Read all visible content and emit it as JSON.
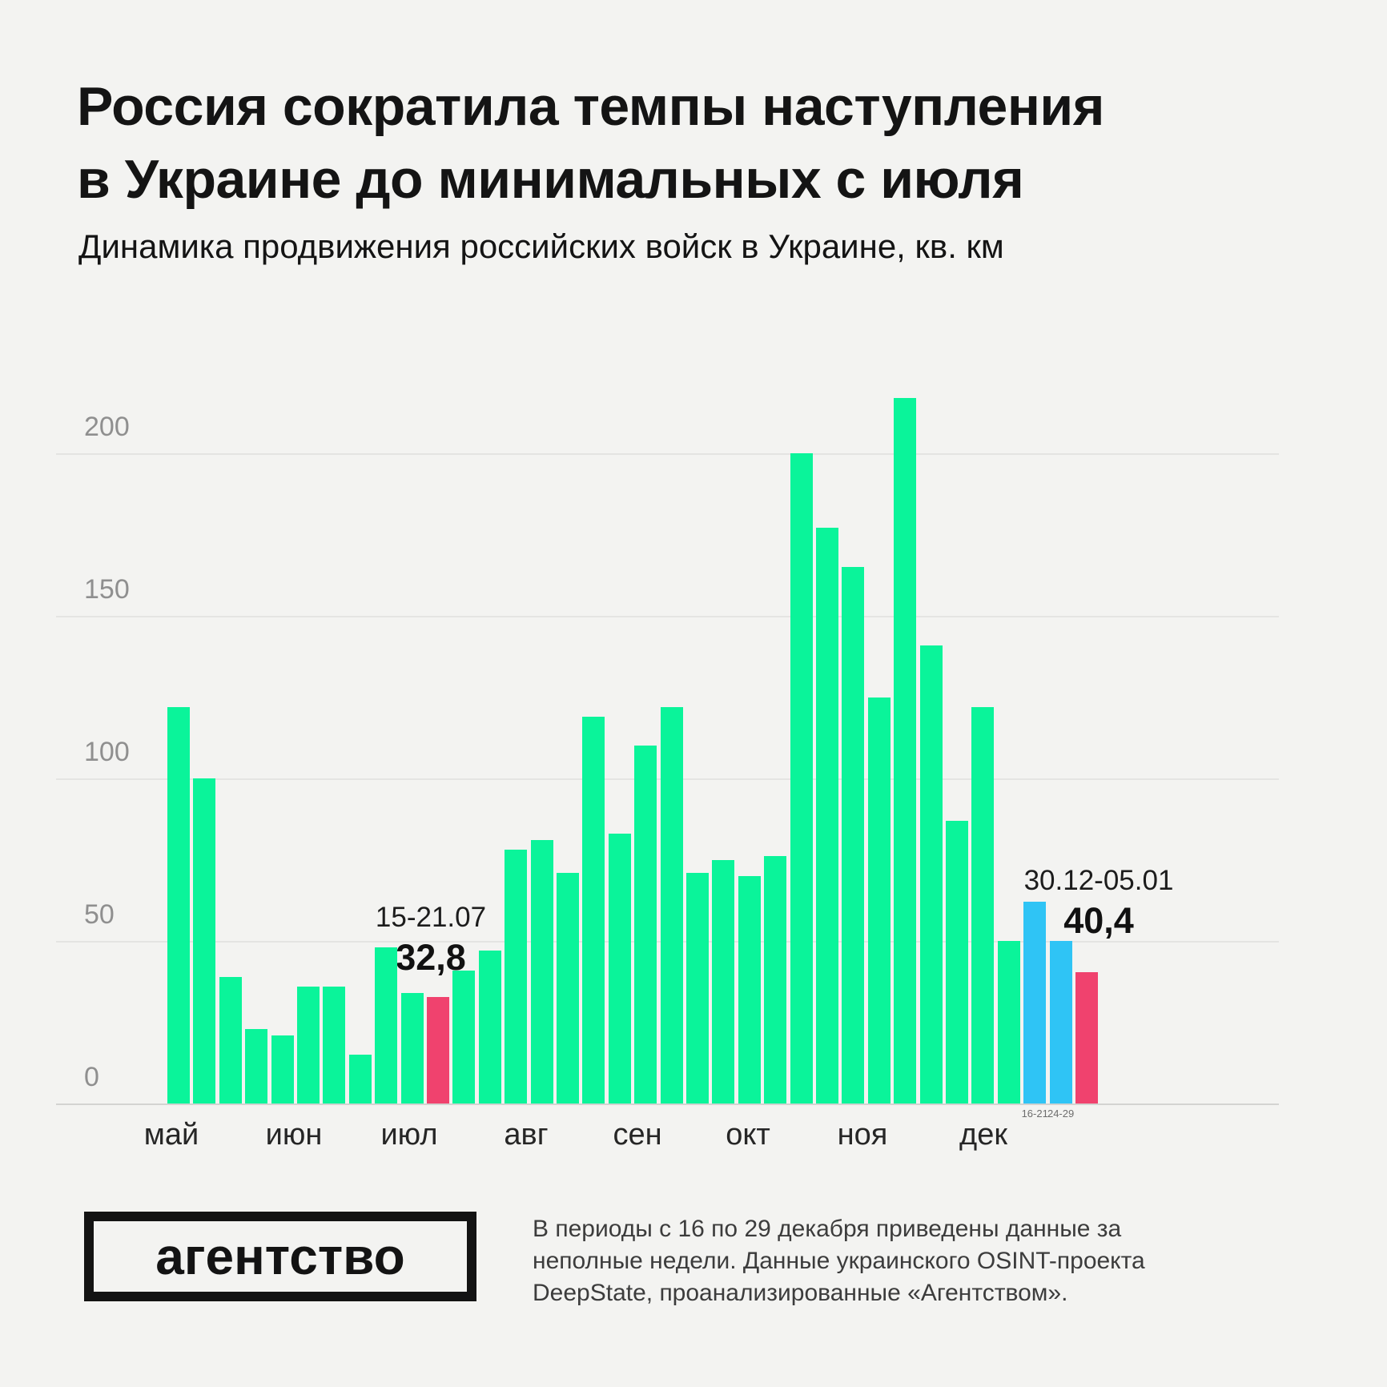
{
  "header": {
    "title_line1": "Россия сократила темпы наступления",
    "title_line2": "в Украине до минимальных с июля",
    "subtitle": "Динамика продвижения российских войск в Украине, кв. км"
  },
  "chart_data": {
    "type": "bar",
    "title": "Динамика продвижения российских войск в Украине, кв. км",
    "xlabel": "",
    "ylabel": "",
    "ylim": [
      0,
      220
    ],
    "grid": true,
    "yticks": [
      0,
      50,
      100,
      150,
      200
    ],
    "months": [
      "май",
      "июн",
      "июл",
      "авг",
      "сен",
      "окт",
      "ноя",
      "дек"
    ],
    "values": [
      122,
      100,
      39,
      23,
      21,
      36,
      36,
      15,
      48,
      34,
      32.8,
      41,
      47,
      78,
      81,
      71,
      119,
      83,
      110,
      122,
      71,
      75,
      70,
      76,
      200,
      177,
      165,
      125,
      217,
      141,
      87,
      122,
      50,
      62,
      50,
      40.4
    ],
    "color_overrides": {
      "10": "pink",
      "33": "blue",
      "34": "blue",
      "35": "pink"
    },
    "colors": {
      "green": "#0af49a",
      "blue": "#2fc4f5",
      "pink": "#f0426e"
    },
    "annotations": [
      {
        "period": "15-21.07",
        "value": "32,8"
      },
      {
        "period": "30.12-05.01",
        "value": "40,4"
      }
    ],
    "partial_week_labels": [
      "16-21",
      "24-29"
    ]
  },
  "footer": {
    "logo": "агентство",
    "note": "В периоды с 16 по 29 декабря приведены данные за неполные недели. Данные украинского OSINT-проекта DeepState, проанализированные «Агентством»."
  }
}
